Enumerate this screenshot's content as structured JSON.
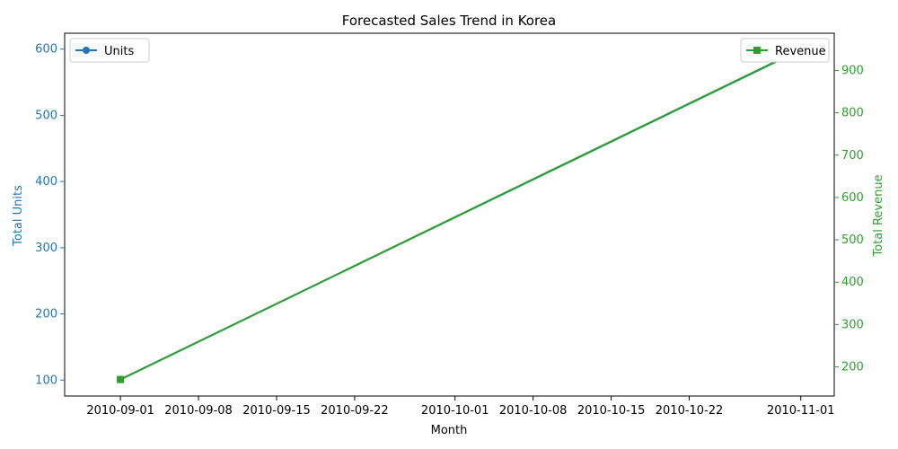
{
  "chart_data": {
    "type": "line",
    "title": "Forecasted Sales Trend in Korea",
    "xlabel": "Month",
    "x": [
      "2010-09-01",
      "2010-11-01"
    ],
    "xlim": [
      "2010-08-27",
      "2010-11-04"
    ],
    "x_ticks": [
      "2010-09-01",
      "2010-09-08",
      "2010-09-15",
      "2010-09-22",
      "2010-10-01",
      "2010-10-08",
      "2010-10-15",
      "2010-10-22",
      "2010-11-01"
    ],
    "y_left": {
      "label": "Total Units",
      "color": "#1f77b4",
      "ylim": [
        76,
        624
      ],
      "ticks": [
        "100",
        "200",
        "300",
        "400",
        "500",
        "600"
      ]
    },
    "y_right": {
      "label": "Total Revenue",
      "color": "#2ca02c",
      "ylim": [
        131,
        988
      ],
      "ticks": [
        "200",
        "300",
        "400",
        "500",
        "600",
        "700",
        "800",
        "900"
      ]
    },
    "series": [
      {
        "name": "Units",
        "axis": "left",
        "marker": "circle",
        "color": "#1f77b4",
        "values": [
          101,
          599
        ]
      },
      {
        "name": "Revenue",
        "axis": "right",
        "marker": "square",
        "color": "#2ca02c",
        "values": [
          170,
          950
        ]
      }
    ],
    "legends": [
      {
        "placement": "upper-left",
        "label": "Units"
      },
      {
        "placement": "upper-right",
        "label": "Revenue"
      }
    ],
    "grid": false
  }
}
